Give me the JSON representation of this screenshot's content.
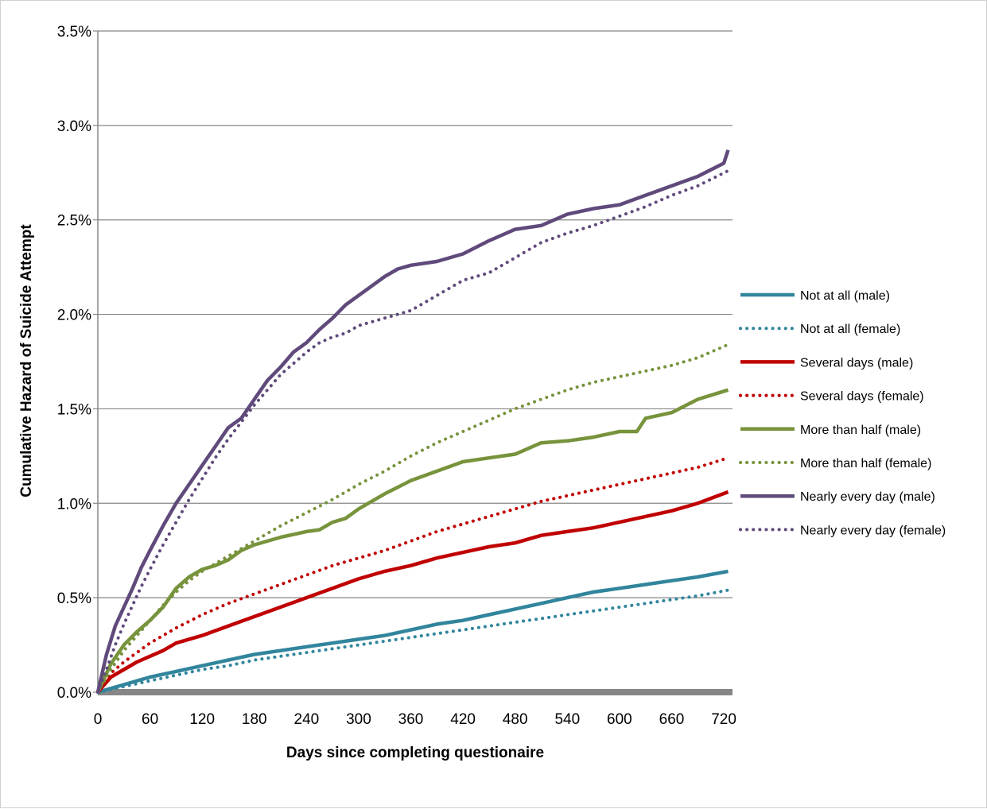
{
  "chart_data": {
    "type": "line",
    "title": "",
    "xlabel": "Days since completing questionaire",
    "ylabel": "Cumulative Hazard of Suicide Attempt",
    "xlim": [
      0,
      730
    ],
    "ylim": [
      0,
      3.5
    ],
    "x_ticks": [
      0,
      60,
      120,
      180,
      240,
      300,
      360,
      420,
      480,
      540,
      600,
      660,
      720
    ],
    "x_tick_labels": [
      "0",
      "60",
      "120",
      "180",
      "240",
      "300",
      "360",
      "420",
      "480",
      "540",
      "600",
      "660",
      "720"
    ],
    "y_ticks": [
      0,
      0.5,
      1.0,
      1.5,
      2.0,
      2.5,
      3.0,
      3.5
    ],
    "y_tick_labels": [
      "0.0%",
      "0.5%",
      "1.0%",
      "1.5%",
      "2.0%",
      "2.5%",
      "3.0%",
      "3.5%"
    ],
    "grid": "horizontal",
    "legend_position": "right",
    "series": [
      {
        "name": "Not at all (male)",
        "color": "#31859C",
        "style": "solid",
        "x": [
          0,
          30,
          60,
          90,
          120,
          150,
          180,
          210,
          240,
          270,
          300,
          330,
          360,
          390,
          420,
          450,
          480,
          510,
          540,
          570,
          600,
          630,
          660,
          690,
          725
        ],
        "y": [
          0,
          0.04,
          0.08,
          0.11,
          0.14,
          0.17,
          0.2,
          0.22,
          0.24,
          0.26,
          0.28,
          0.3,
          0.33,
          0.36,
          0.38,
          0.41,
          0.44,
          0.47,
          0.5,
          0.53,
          0.55,
          0.57,
          0.59,
          0.61,
          0.64
        ]
      },
      {
        "name": "Not at all (female)",
        "color": "#31859C",
        "style": "dotted",
        "x": [
          0,
          30,
          60,
          90,
          120,
          150,
          180,
          210,
          240,
          270,
          300,
          330,
          360,
          390,
          420,
          450,
          480,
          510,
          540,
          570,
          600,
          630,
          660,
          690,
          725
        ],
        "y": [
          0,
          0.03,
          0.06,
          0.09,
          0.12,
          0.14,
          0.17,
          0.19,
          0.21,
          0.23,
          0.25,
          0.27,
          0.29,
          0.31,
          0.33,
          0.35,
          0.37,
          0.39,
          0.41,
          0.43,
          0.45,
          0.47,
          0.49,
          0.51,
          0.54
        ]
      },
      {
        "name": "Several days (male)",
        "color": "#C00000",
        "style": "solid",
        "x": [
          0,
          15,
          30,
          45,
          60,
          75,
          90,
          120,
          150,
          180,
          210,
          240,
          270,
          300,
          330,
          360,
          390,
          420,
          450,
          480,
          510,
          540,
          570,
          600,
          630,
          660,
          690,
          725
        ],
        "y": [
          0,
          0.08,
          0.12,
          0.16,
          0.19,
          0.22,
          0.26,
          0.3,
          0.35,
          0.4,
          0.45,
          0.5,
          0.55,
          0.6,
          0.64,
          0.67,
          0.71,
          0.74,
          0.77,
          0.79,
          0.83,
          0.85,
          0.87,
          0.9,
          0.93,
          0.96,
          1.0,
          1.06
        ]
      },
      {
        "name": "Several days (female)",
        "color": "#C00000",
        "style": "dotted",
        "x": [
          0,
          15,
          30,
          45,
          60,
          75,
          90,
          120,
          150,
          180,
          210,
          240,
          270,
          300,
          330,
          360,
          390,
          420,
          450,
          480,
          510,
          540,
          570,
          600,
          630,
          660,
          690,
          725
        ],
        "y": [
          0,
          0.1,
          0.16,
          0.21,
          0.26,
          0.3,
          0.34,
          0.41,
          0.47,
          0.52,
          0.57,
          0.62,
          0.67,
          0.71,
          0.75,
          0.8,
          0.85,
          0.89,
          0.93,
          0.97,
          1.01,
          1.04,
          1.07,
          1.1,
          1.13,
          1.16,
          1.19,
          1.24
        ]
      },
      {
        "name": "More than half (male)",
        "color": "#77933C",
        "style": "solid",
        "x": [
          0,
          15,
          30,
          45,
          60,
          75,
          90,
          105,
          120,
          135,
          150,
          165,
          180,
          210,
          240,
          255,
          270,
          285,
          300,
          330,
          360,
          390,
          420,
          450,
          480,
          510,
          540,
          570,
          600,
          620,
          630,
          660,
          690,
          725
        ],
        "y": [
          0,
          0.15,
          0.25,
          0.32,
          0.38,
          0.45,
          0.55,
          0.61,
          0.65,
          0.67,
          0.7,
          0.75,
          0.78,
          0.82,
          0.85,
          0.86,
          0.9,
          0.92,
          0.97,
          1.05,
          1.12,
          1.17,
          1.22,
          1.24,
          1.26,
          1.32,
          1.33,
          1.35,
          1.38,
          1.38,
          1.45,
          1.48,
          1.55,
          1.6
        ]
      },
      {
        "name": "More than half (female)",
        "color": "#77933C",
        "style": "dotted",
        "x": [
          0,
          15,
          30,
          45,
          60,
          75,
          90,
          105,
          120,
          150,
          180,
          210,
          240,
          270,
          300,
          330,
          360,
          390,
          420,
          450,
          480,
          510,
          540,
          570,
          600,
          630,
          660,
          690,
          725
        ],
        "y": [
          0,
          0.12,
          0.22,
          0.3,
          0.38,
          0.46,
          0.53,
          0.59,
          0.64,
          0.72,
          0.8,
          0.88,
          0.95,
          1.02,
          1.1,
          1.17,
          1.25,
          1.32,
          1.38,
          1.44,
          1.5,
          1.55,
          1.6,
          1.64,
          1.67,
          1.7,
          1.73,
          1.77,
          1.84
        ]
      },
      {
        "name": "Nearly every day (male)",
        "color": "#604A7B",
        "style": "solid",
        "x": [
          0,
          10,
          20,
          30,
          40,
          50,
          60,
          75,
          90,
          105,
          120,
          135,
          150,
          165,
          180,
          195,
          210,
          225,
          240,
          255,
          270,
          285,
          300,
          315,
          330,
          345,
          360,
          390,
          420,
          450,
          480,
          510,
          540,
          570,
          600,
          630,
          660,
          690,
          720,
          725
        ],
        "y": [
          0,
          0.2,
          0.35,
          0.45,
          0.55,
          0.66,
          0.75,
          0.88,
          1.0,
          1.1,
          1.2,
          1.3,
          1.4,
          1.45,
          1.55,
          1.65,
          1.72,
          1.8,
          1.85,
          1.92,
          1.98,
          2.05,
          2.1,
          2.15,
          2.2,
          2.24,
          2.26,
          2.28,
          2.32,
          2.39,
          2.45,
          2.47,
          2.53,
          2.56,
          2.58,
          2.63,
          2.68,
          2.73,
          2.8,
          2.87
        ]
      },
      {
        "name": "Nearly every day (female)",
        "color": "#604A7B",
        "style": "dotted",
        "x": [
          0,
          10,
          20,
          30,
          40,
          50,
          60,
          75,
          90,
          105,
          120,
          135,
          150,
          165,
          180,
          195,
          210,
          225,
          240,
          255,
          270,
          285,
          300,
          330,
          360,
          390,
          420,
          450,
          480,
          510,
          540,
          570,
          600,
          630,
          660,
          690,
          725
        ],
        "y": [
          0,
          0.12,
          0.25,
          0.36,
          0.46,
          0.56,
          0.65,
          0.78,
          0.9,
          1.02,
          1.13,
          1.24,
          1.34,
          1.43,
          1.52,
          1.6,
          1.68,
          1.74,
          1.8,
          1.85,
          1.88,
          1.9,
          1.94,
          1.98,
          2.02,
          2.1,
          2.18,
          2.22,
          2.3,
          2.38,
          2.43,
          2.47,
          2.52,
          2.57,
          2.63,
          2.68,
          2.76
        ]
      }
    ]
  }
}
